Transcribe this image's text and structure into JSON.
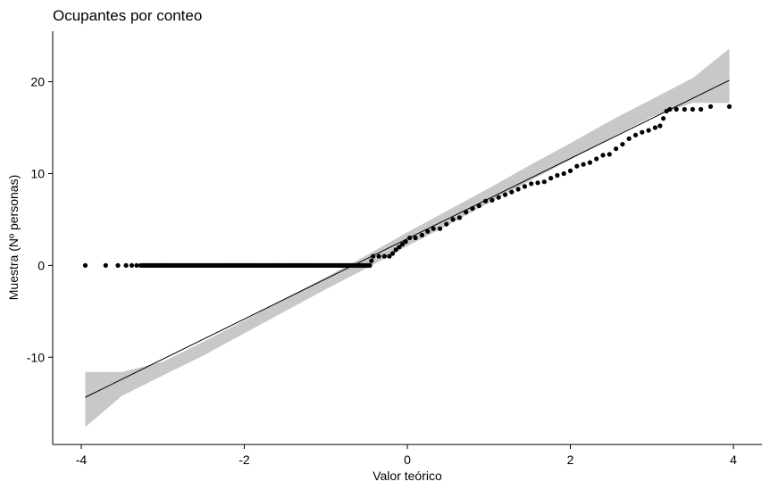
{
  "chart_data": {
    "type": "scatter",
    "subtype": "qq-plot",
    "title": "Ocupantes por conteo",
    "xlabel": "Valor teórico",
    "ylabel": "Muestra (Nº personas)",
    "xlim": [
      -4.35,
      4.35
    ],
    "ylim": [
      -19.5,
      25.5
    ],
    "x_ticks": [
      -4,
      -2,
      0,
      2,
      4
    ],
    "y_ticks": [
      -10,
      0,
      10,
      20
    ],
    "x_tick_labels": [
      "-4",
      "-2",
      "0",
      "2",
      "4"
    ],
    "y_tick_labels": [
      "-10",
      "0",
      "10",
      "20"
    ],
    "grid": false,
    "colors": {
      "points": "#000000",
      "line": "#000000",
      "band": "#c8c8c8"
    },
    "reference_line": {
      "slope": 4.37,
      "intercept": 2.9
    },
    "confidence_band": {
      "x": [
        -3.95,
        -3.5,
        -3.0,
        -2.5,
        -2.0,
        -1.5,
        -1.0,
        -0.5,
        0.0,
        0.5,
        1.0,
        1.5,
        2.0,
        2.5,
        3.0,
        3.5,
        3.95
      ],
      "lower": [
        -17.6,
        -14.2,
        -12.0,
        -9.8,
        -7.4,
        -5.0,
        -2.6,
        -0.3,
        2.1,
        4.4,
        6.8,
        9.2,
        11.5,
        13.9,
        16.2,
        17.7,
        17.7
      ],
      "upper": [
        -11.6,
        -11.6,
        -10.5,
        -8.3,
        -6.0,
        -3.6,
        -1.3,
        1.1,
        3.6,
        6.0,
        8.4,
        10.9,
        13.3,
        15.8,
        18.1,
        20.4,
        23.6
      ]
    },
    "points": [
      [
        -3.95,
        0
      ],
      [
        -3.7,
        0
      ],
      [
        -3.55,
        0
      ],
      [
        -3.45,
        0
      ],
      [
        -3.38,
        0
      ],
      [
        -3.32,
        0
      ],
      [
        -3.27,
        0
      ],
      {
        "x_from": -3.24,
        "x_to": -0.45,
        "step": 0.02,
        "y": 0
      },
      [
        -0.44,
        0.5
      ],
      [
        -0.42,
        1
      ],
      [
        -0.35,
        1
      ],
      [
        -0.28,
        1
      ],
      [
        -0.22,
        1
      ],
      [
        -0.18,
        1.3
      ],
      [
        -0.14,
        1.7
      ],
      [
        -0.1,
        2
      ],
      [
        -0.06,
        2.3
      ],
      [
        -0.02,
        2.6
      ],
      [
        0.03,
        3
      ],
      [
        0.1,
        3
      ],
      [
        0.18,
        3.3
      ],
      [
        0.25,
        3.7
      ],
      [
        0.32,
        4
      ],
      [
        0.4,
        4
      ],
      [
        0.48,
        4.5
      ],
      [
        0.56,
        5
      ],
      [
        0.64,
        5.2
      ],
      [
        0.72,
        5.8
      ],
      [
        0.8,
        6.2
      ],
      [
        0.88,
        6.5
      ],
      [
        0.96,
        7
      ],
      [
        1.04,
        7.1
      ],
      [
        1.12,
        7.4
      ],
      [
        1.2,
        7.7
      ],
      [
        1.28,
        8
      ],
      [
        1.36,
        8.3
      ],
      [
        1.44,
        8.6
      ],
      [
        1.52,
        8.9
      ],
      [
        1.6,
        9
      ],
      [
        1.68,
        9.1
      ],
      [
        1.76,
        9.5
      ],
      [
        1.84,
        9.8
      ],
      [
        1.92,
        10
      ],
      [
        2.0,
        10.3
      ],
      [
        2.08,
        10.8
      ],
      [
        2.16,
        11
      ],
      [
        2.24,
        11.2
      ],
      [
        2.32,
        11.6
      ],
      [
        2.4,
        12
      ],
      [
        2.48,
        12.1
      ],
      [
        2.56,
        12.7
      ],
      [
        2.64,
        13.2
      ],
      [
        2.72,
        13.8
      ],
      [
        2.8,
        14.2
      ],
      [
        2.88,
        14.5
      ],
      [
        2.96,
        14.7
      ],
      [
        3.04,
        15
      ],
      [
        3.1,
        15.2
      ],
      [
        3.14,
        16
      ],
      [
        3.18,
        16.8
      ],
      [
        3.22,
        17
      ],
      [
        3.3,
        17
      ],
      [
        3.4,
        17
      ],
      [
        3.5,
        17
      ],
      [
        3.6,
        17
      ],
      [
        3.72,
        17.3
      ],
      [
        3.95,
        17.3
      ]
    ]
  }
}
